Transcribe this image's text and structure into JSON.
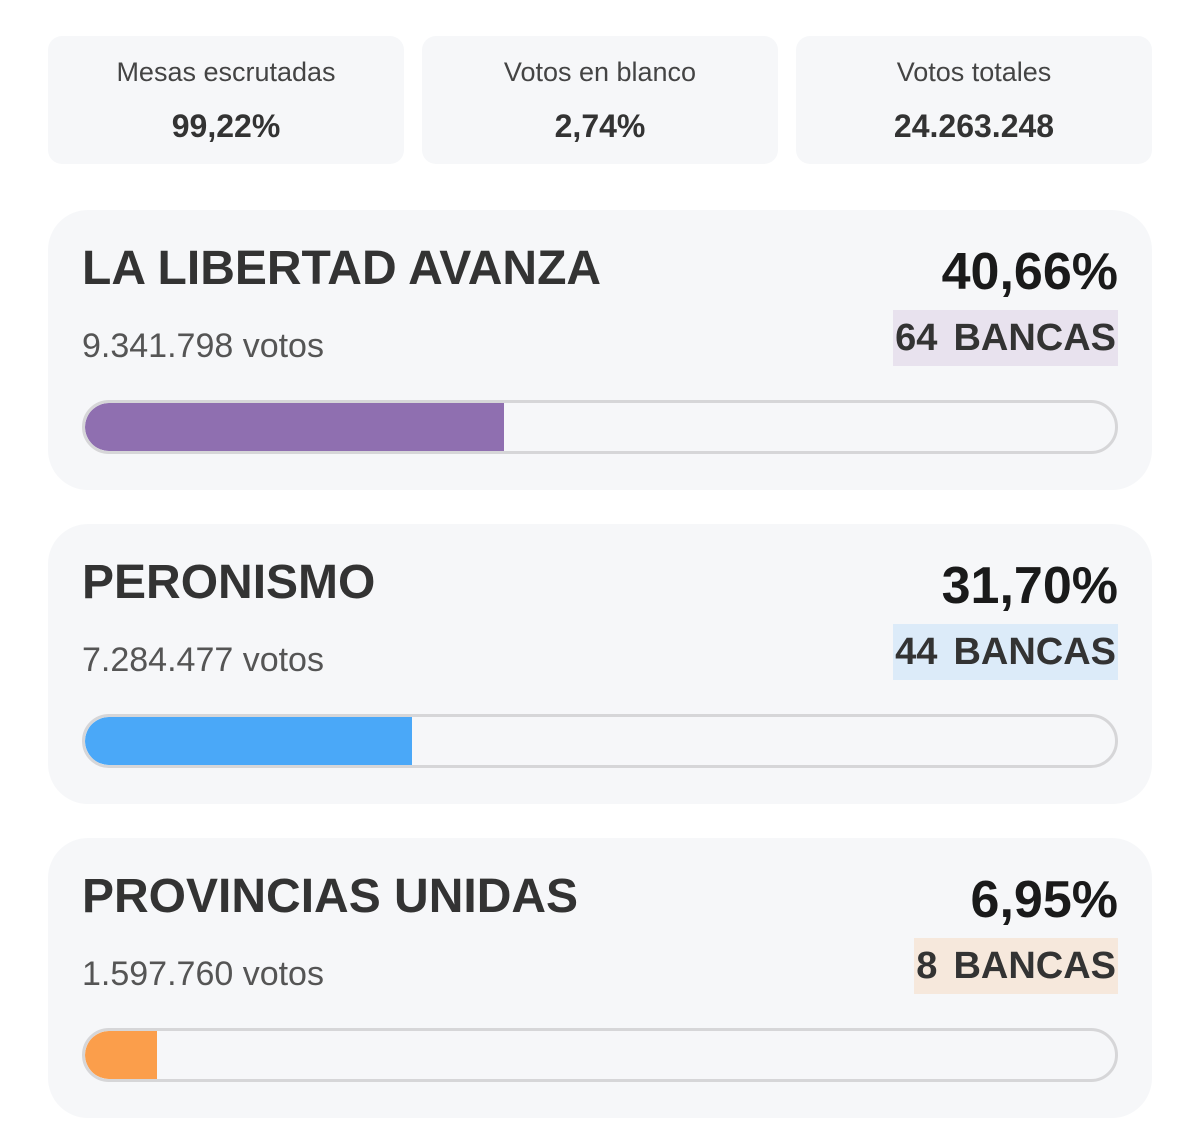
{
  "stats": [
    {
      "label": "Mesas escrutadas",
      "value": "99,22%"
    },
    {
      "label": "Votos en blanco",
      "value": "2,74%"
    },
    {
      "label": "Votos totales",
      "value": "24.263.248"
    }
  ],
  "parties": [
    {
      "name": "LA LIBERTAD AVANZA",
      "votes": "9.341.798 votos",
      "percent": "40,66%",
      "seats": "64",
      "seats_label": "BANCAS",
      "progress_fraction": 0.4066,
      "bar_color": "#8f6fb0",
      "badge_color": "#e8e2ee"
    },
    {
      "name": "PERONISMO",
      "votes": "7.284.477 votos",
      "percent": "31,70%",
      "seats": "44",
      "seats_label": "BANCAS",
      "progress_fraction": 0.317,
      "bar_color": "#4aa8f8",
      "badge_color": "#dcebf9"
    },
    {
      "name": "PROVINCIAS UNIDAS",
      "votes": "1.597.760 votos",
      "percent": "6,95%",
      "seats": "8",
      "seats_label": "BANCAS",
      "progress_fraction": 0.0695,
      "bar_color": "#fb9e4b",
      "badge_color": "#f6e8dc"
    }
  ]
}
